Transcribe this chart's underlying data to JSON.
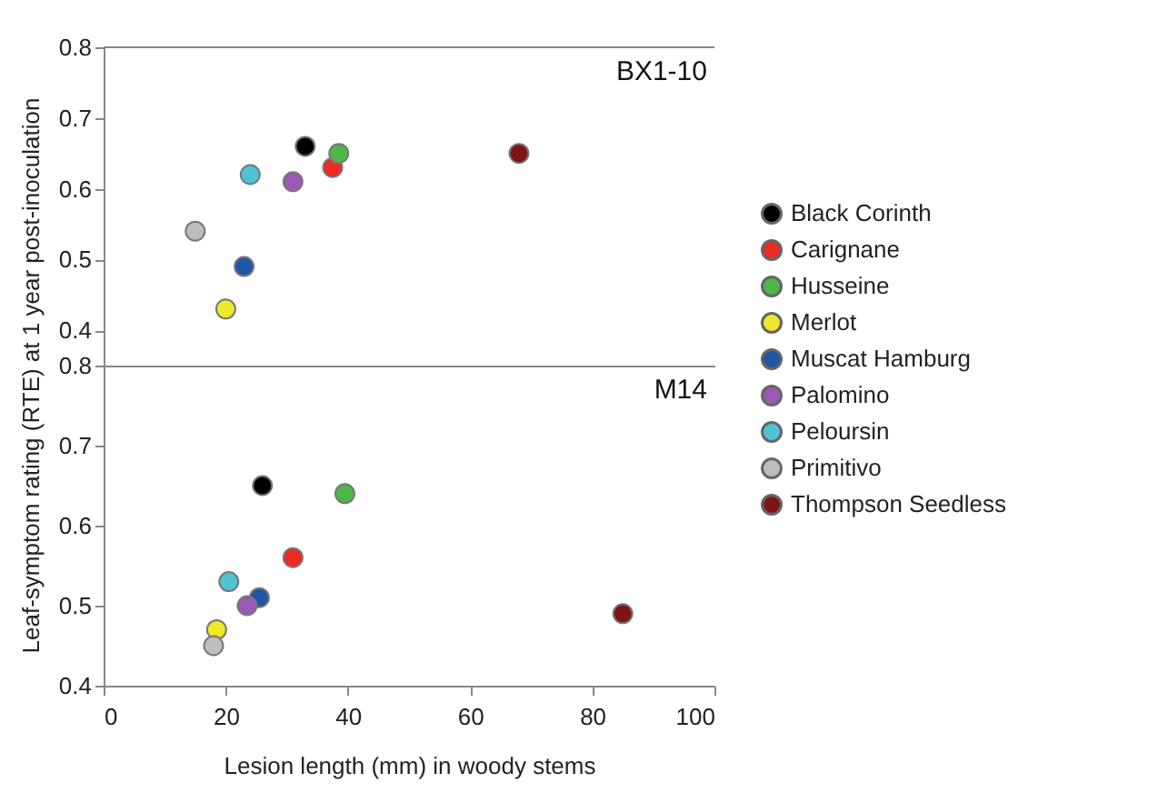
{
  "chart_data": [
    {
      "type": "scatter",
      "title": "BX1-10",
      "ylabel": "Leaf-symptom rating (RTE) at 1 year post-inoculation",
      "xlim": [
        0,
        100
      ],
      "xticks": [
        0,
        20,
        40,
        60,
        80,
        100
      ],
      "ylim": [
        0.35,
        0.8
      ],
      "yticks": [
        0.4,
        0.5,
        0.6,
        0.7,
        0.8
      ],
      "tick_labels": "y",
      "grid": false,
      "legend": "right",
      "marker": "circle",
      "series": [
        {
          "name": "Black Corinth",
          "color": "#000000",
          "x": [
            33
          ],
          "values": [
            0.66
          ]
        },
        {
          "name": "Carignane",
          "color": "#ee2a24",
          "x": [
            37.5
          ],
          "values": [
            0.63
          ]
        },
        {
          "name": "Husseine",
          "color": "#4cb848",
          "x": [
            38.5
          ],
          "values": [
            0.65
          ]
        },
        {
          "name": "Merlot",
          "color": "#eeea2a",
          "x": [
            20
          ],
          "values": [
            0.43
          ]
        },
        {
          "name": "Muscat Hamburg",
          "color": "#1f56a8",
          "x": [
            23
          ],
          "values": [
            0.49
          ]
        },
        {
          "name": "Palomino",
          "color": "#9b59b6",
          "x": [
            31
          ],
          "values": [
            0.61
          ]
        },
        {
          "name": "Peloursin",
          "color": "#4fc3d6",
          "x": [
            24
          ],
          "values": [
            0.62
          ]
        },
        {
          "name": "Primitivo",
          "color": "#bdbdbd",
          "x": [
            15
          ],
          "values": [
            0.54
          ]
        },
        {
          "name": "Thompson Seedless",
          "color": "#7f1416",
          "x": [
            68
          ],
          "values": [
            0.65
          ]
        }
      ]
    },
    {
      "type": "scatter",
      "title": "M14",
      "xlabel": "Lesion length (mm) in woody stems",
      "xlim": [
        0,
        100
      ],
      "xticks": [
        0,
        20,
        40,
        60,
        80,
        100
      ],
      "ylim": [
        0.4,
        0.8
      ],
      "yticks": [
        0.4,
        0.5,
        0.6,
        0.7,
        0.8
      ],
      "grid": false,
      "legend": false,
      "marker": "circle",
      "series": [
        {
          "name": "Black Corinth",
          "color": "#000000",
          "x": [
            26
          ],
          "values": [
            0.65
          ]
        },
        {
          "name": "Carignane",
          "color": "#ee2a24",
          "x": [
            31
          ],
          "values": [
            0.56
          ]
        },
        {
          "name": "Husseine",
          "color": "#4cb848",
          "x": [
            39.5
          ],
          "values": [
            0.64
          ]
        },
        {
          "name": "Merlot",
          "color": "#eeea2a",
          "x": [
            18.5
          ],
          "values": [
            0.47
          ]
        },
        {
          "name": "Muscat Hamburg",
          "color": "#1f56a8",
          "x": [
            25.5
          ],
          "values": [
            0.51
          ]
        },
        {
          "name": "Palomino",
          "color": "#9b59b6",
          "x": [
            23.5
          ],
          "values": [
            0.5
          ]
        },
        {
          "name": "Peloursin",
          "color": "#4fc3d6",
          "x": [
            20.5
          ],
          "values": [
            0.53
          ]
        },
        {
          "name": "Primitivo",
          "color": "#bdbdbd",
          "x": [
            18
          ],
          "values": [
            0.45
          ]
        },
        {
          "name": "Thompson Seedless",
          "color": "#7f1416",
          "x": [
            85
          ],
          "values": [
            0.49
          ]
        }
      ]
    }
  ]
}
